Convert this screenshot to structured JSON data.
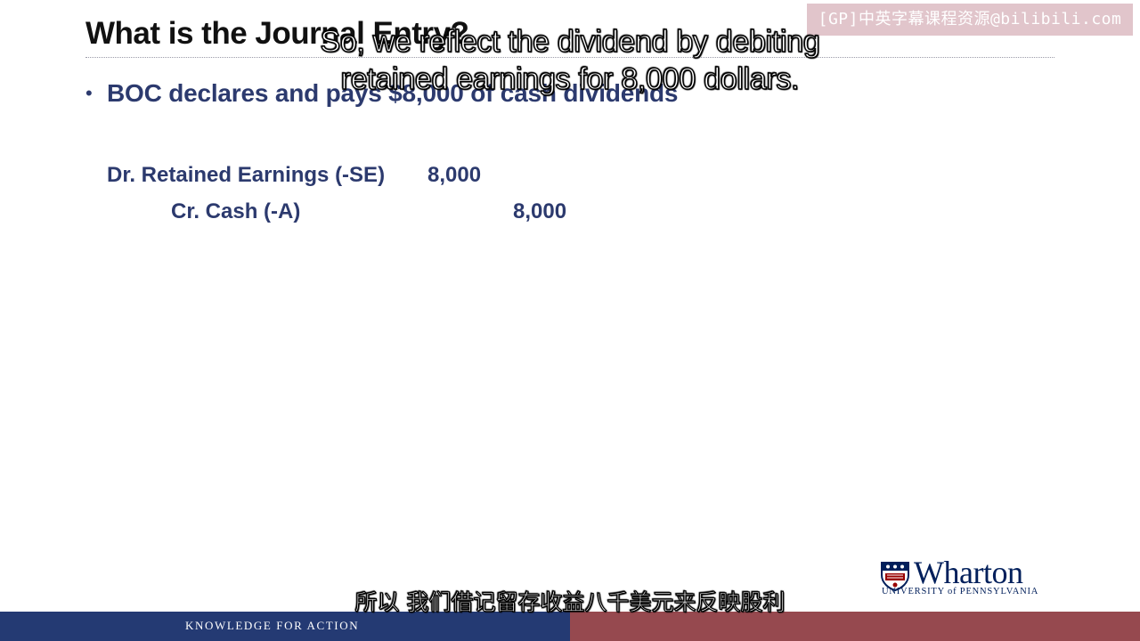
{
  "slide": {
    "title": "What is the Journal Entry?",
    "bullet": "BOC declares and pays $8,000 of cash dividends",
    "journal_entry": {
      "debit": {
        "label": "Dr. Retained Earnings (-SE)",
        "amount": "8,000"
      },
      "credit": {
        "label": "Cr.  Cash (-A)",
        "amount": "8,000"
      }
    }
  },
  "subtitles": {
    "english": "So, we reflect the dividend by debiting retained earnings for 8,000 dollars.",
    "chinese": "所以 我们借记留存收益八千美元来反映股利"
  },
  "watermark": "[GP]中英字幕课程资源@bilibili.com",
  "logo": {
    "wordmark": "Wharton",
    "university": "UNIVERSITY of PENNSYLVANIA"
  },
  "footer": {
    "tagline": "KNOWLEDGE FOR ACTION"
  },
  "colors": {
    "body_text": "#2c3a6e",
    "title_text": "#111111",
    "footer_blue": "#243a73",
    "footer_red": "#96494f",
    "logo_navy": "#011f5b"
  }
}
